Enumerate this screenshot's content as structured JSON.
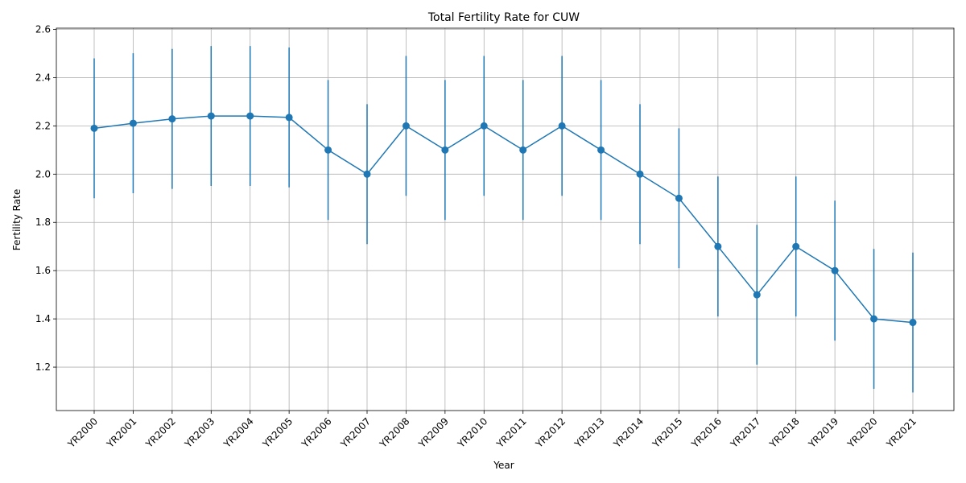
{
  "chart_data": {
    "type": "line",
    "title": "Total Fertility Rate for CUW",
    "xlabel": "Year",
    "ylabel": "Fertility Rate",
    "categories": [
      "YR2000",
      "YR2001",
      "YR2002",
      "YR2003",
      "YR2004",
      "YR2005",
      "YR2006",
      "YR2007",
      "YR2008",
      "YR2009",
      "YR2010",
      "YR2011",
      "YR2012",
      "YR2013",
      "YR2014",
      "YR2015",
      "YR2016",
      "YR2017",
      "YR2018",
      "YR2019",
      "YR2020",
      "YR2021"
    ],
    "values": [
      2.19,
      2.211,
      2.229,
      2.241,
      2.241,
      2.235,
      2.1,
      2.0,
      2.2,
      2.1,
      2.2,
      2.1,
      2.2,
      2.1,
      2.0,
      1.9,
      1.7,
      1.5,
      1.7,
      1.6,
      1.4,
      1.385
    ],
    "error_low": [
      1.9,
      1.921,
      1.939,
      1.951,
      1.951,
      1.945,
      1.81,
      1.71,
      1.91,
      1.81,
      1.91,
      1.81,
      1.91,
      1.81,
      1.71,
      1.61,
      1.41,
      1.21,
      1.41,
      1.31,
      1.11,
      1.095
    ],
    "error_high": [
      2.48,
      2.501,
      2.519,
      2.531,
      2.531,
      2.525,
      2.39,
      2.29,
      2.49,
      2.39,
      2.49,
      2.39,
      2.49,
      2.39,
      2.29,
      2.19,
      1.99,
      1.79,
      1.99,
      1.89,
      1.69,
      1.675
    ],
    "yticks": [
      "1.2",
      "1.4",
      "1.6",
      "1.8",
      "2.0",
      "2.2",
      "2.4",
      "2.6"
    ],
    "ylim": [
      1.02,
      2.605
    ],
    "grid": true,
    "color": "#1f77b4"
  }
}
